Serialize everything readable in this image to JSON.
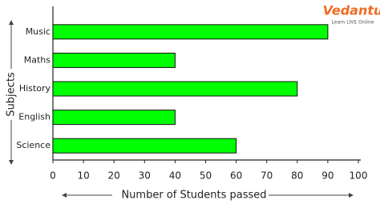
{
  "chart_data": {
    "type": "bar",
    "orientation": "horizontal",
    "categories": [
      "Music",
      "Maths",
      "History",
      "English",
      "Science"
    ],
    "values": [
      90,
      40,
      80,
      40,
      60
    ],
    "color": "#00ff00",
    "xlim": [
      0,
      100
    ],
    "xticks": [
      0,
      10,
      20,
      30,
      40,
      50,
      60,
      70,
      80,
      90,
      100
    ],
    "x_label": "Number of Students passed",
    "y_label": "Subjects",
    "grid": false
  },
  "logo": {
    "name": "Vedantu",
    "tagline": "Learn LIVE Online"
  }
}
